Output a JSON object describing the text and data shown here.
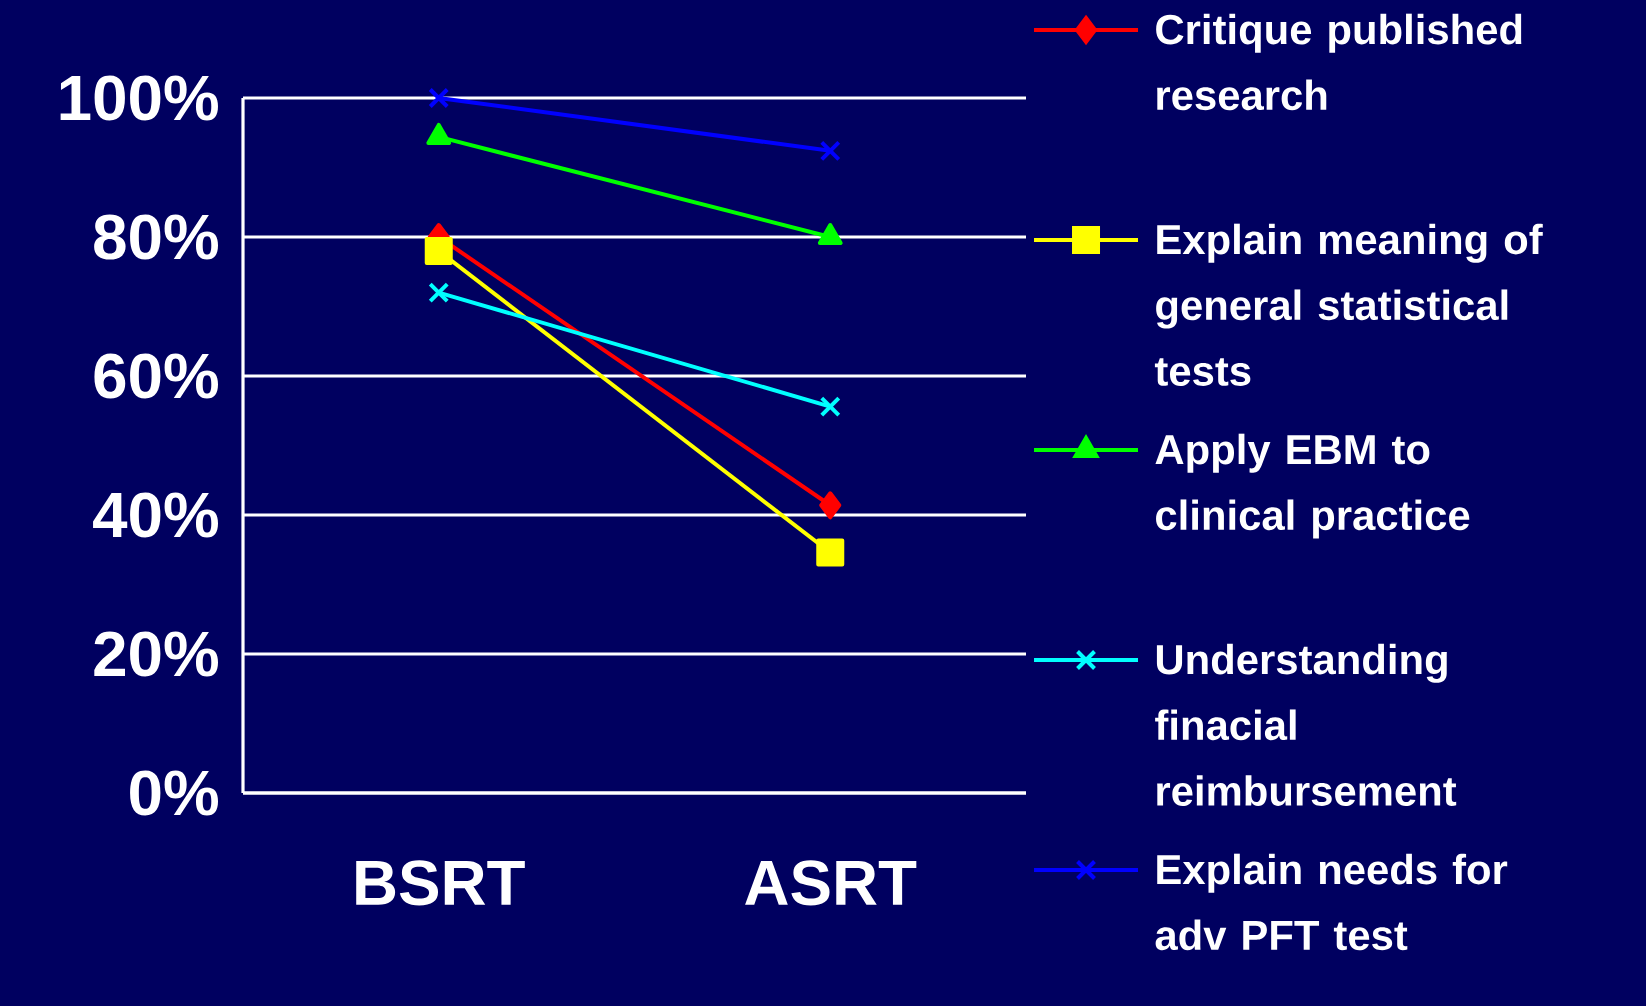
{
  "chart_data": {
    "type": "line",
    "categories": [
      "BSRT",
      "ASRT"
    ],
    "series": [
      {
        "name": "Critique published research",
        "color": "#ff0000",
        "marker": "diamond",
        "values": [
          80,
          41.4
        ]
      },
      {
        "name": "Explain meaning of general statistical tests",
        "color": "#ffff00",
        "marker": "square",
        "values": [
          78,
          34.6
        ]
      },
      {
        "name": "Apply EBM to clinical practice",
        "color": "#00ff00",
        "marker": "triangle",
        "values": [
          94.4,
          80
        ]
      },
      {
        "name": "Understanding finacial reimbursement",
        "color": "#00ffff",
        "marker": "cross",
        "values": [
          72,
          55.6
        ]
      },
      {
        "name": "Explain needs for adv PFT test",
        "color": "#0000ff",
        "marker": "cross",
        "values": [
          100,
          92.4
        ]
      }
    ],
    "ylim": [
      0,
      100
    ],
    "yticks": [
      {
        "value": 0,
        "label": "0%"
      },
      {
        "value": 20,
        "label": "20%"
      },
      {
        "value": 40,
        "label": "40%"
      },
      {
        "value": 60,
        "label": "60%"
      },
      {
        "value": 80,
        "label": "80%"
      },
      {
        "value": 100,
        "label": "100%"
      }
    ],
    "grid": "y",
    "legend": "right",
    "line_style": "solid"
  }
}
